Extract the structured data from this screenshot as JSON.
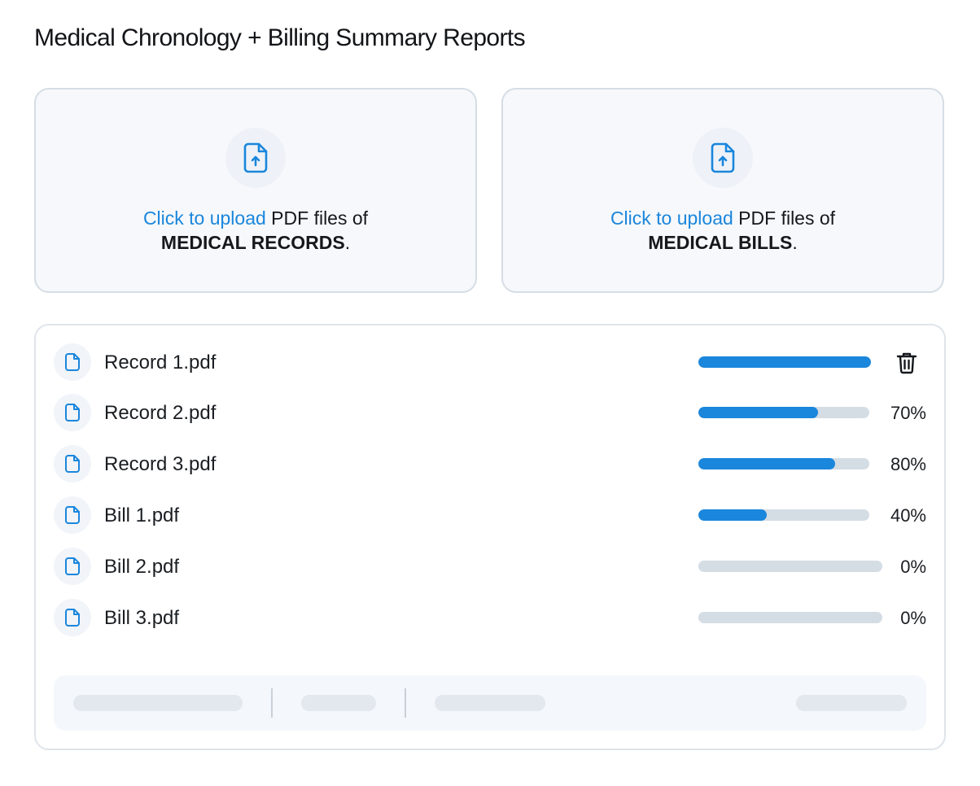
{
  "page": {
    "title": "Medical Chronology + Billing Summary Reports"
  },
  "upload_cards": [
    {
      "link": "Click to upload",
      "text": " PDF files of",
      "category": "MEDICAL RECORDS",
      "suffix": ".",
      "icon": "file-upload-icon"
    },
    {
      "link": "Click to upload",
      "text": " PDF files of",
      "category": "MEDICAL BILLS",
      "suffix": ".",
      "icon": "file-upload-icon"
    }
  ],
  "files": [
    {
      "name": "Record 1.pdf",
      "progress": 100,
      "percent_label": "",
      "action": "trash-icon"
    },
    {
      "name": "Record 2.pdf",
      "progress": 70,
      "percent_label": "70%"
    },
    {
      "name": "Record 3.pdf",
      "progress": 80,
      "percent_label": "80%"
    },
    {
      "name": "Bill 1.pdf",
      "progress": 40,
      "percent_label": "40%"
    },
    {
      "name": "Bill 2.pdf",
      "progress": 0,
      "percent_label": "0%"
    },
    {
      "name": "Bill 3.pdf",
      "progress": 0,
      "percent_label": "0%"
    }
  ],
  "colors": {
    "accent": "#1a86dc",
    "track": "#d4dce4",
    "card_border": "#d6dde5",
    "card_bg": "#f6f8fb"
  }
}
